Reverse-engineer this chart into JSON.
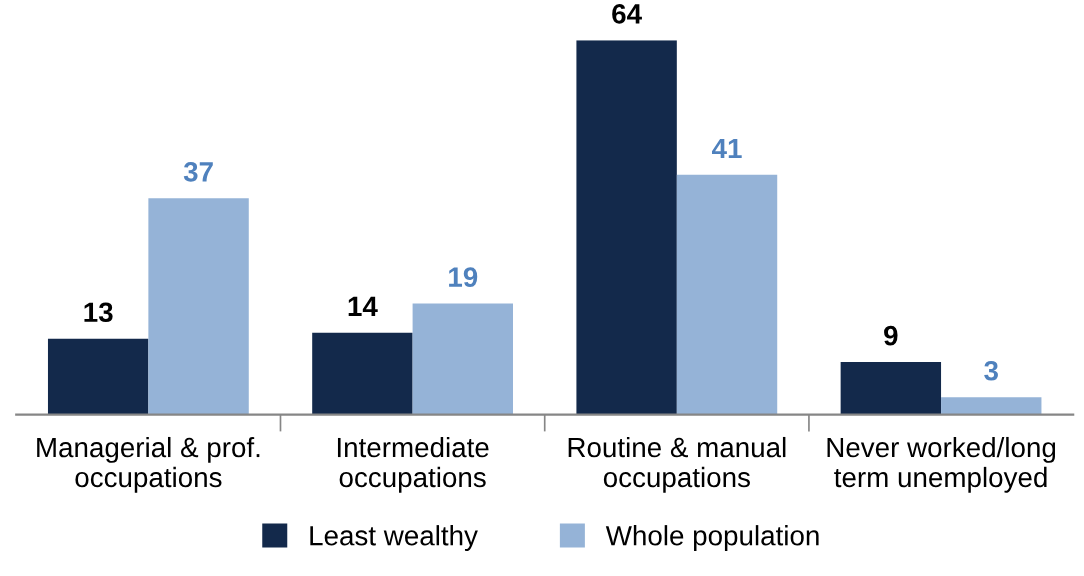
{
  "chart_data": {
    "type": "bar",
    "categories": [
      "Managerial & prof.\noccupations",
      "Intermediate\noccupations",
      "Routine & manual\noccupations",
      "Never worked/long\nterm unemployed"
    ],
    "series": [
      {
        "name": "Least wealthy",
        "color": "#13294b",
        "values": [
          13,
          14,
          64,
          9
        ]
      },
      {
        "name": "Whole population",
        "color": "#95b3d7",
        "values": [
          37,
          19,
          41,
          3
        ]
      }
    ],
    "data_labels": true,
    "legend": "bottom",
    "grid": false,
    "tick_labels": "x"
  }
}
